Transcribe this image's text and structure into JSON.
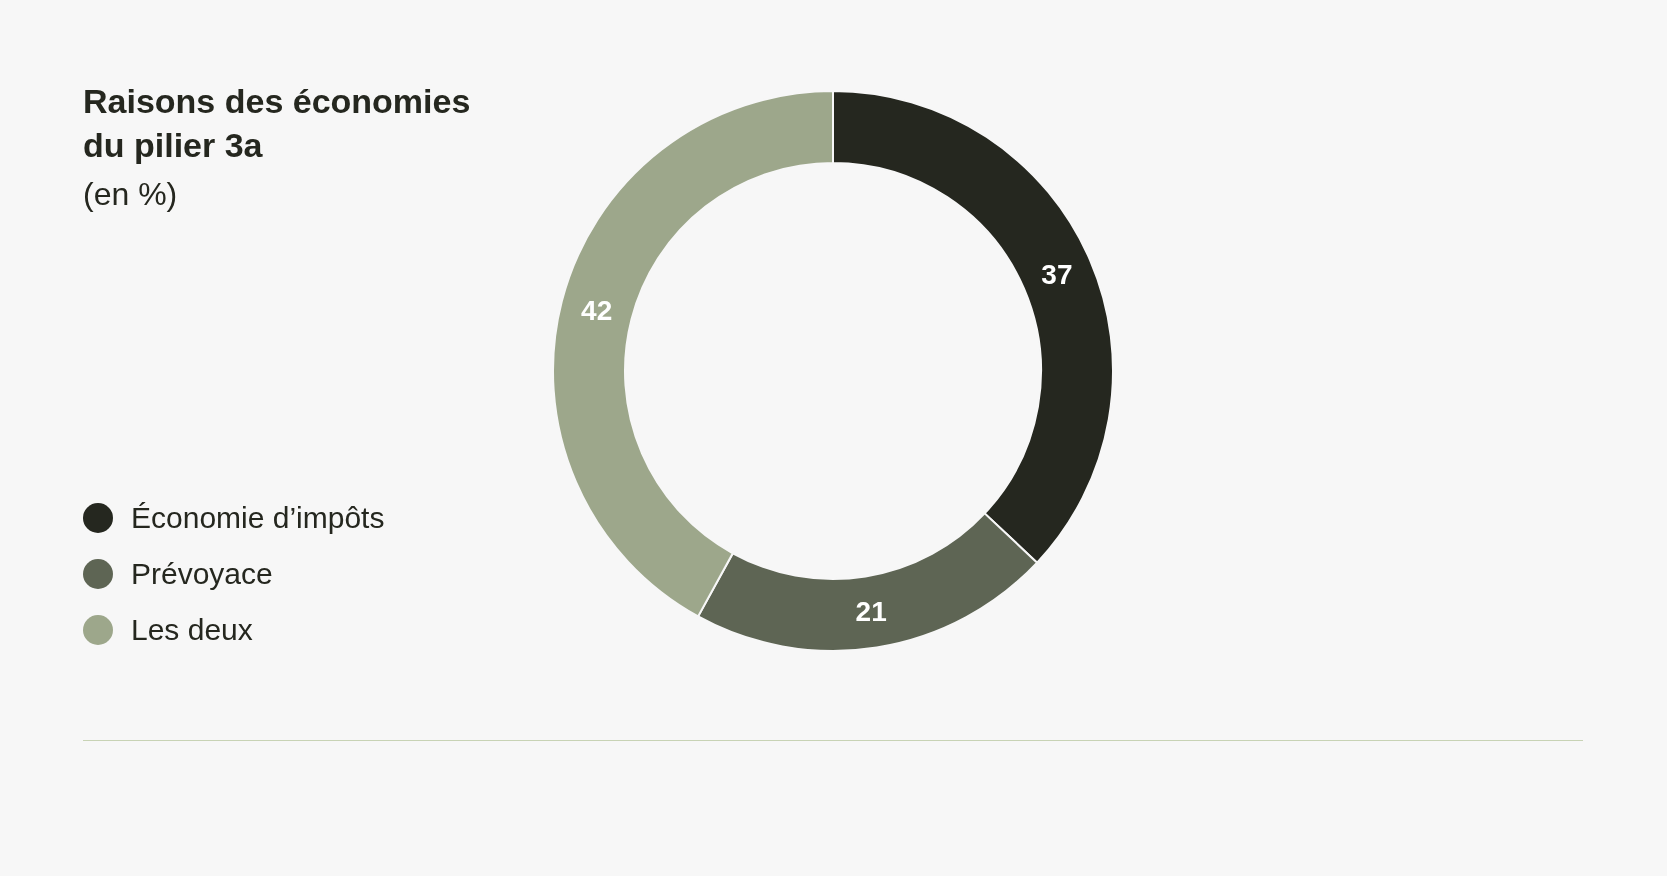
{
  "chart_data": {
    "type": "donut",
    "title": "Raisons des économies du pilier 3a",
    "subtitle": "(en %)",
    "categories": [
      "Économie d’impôts",
      "Prévoyace",
      "Les deux"
    ],
    "values": [
      37,
      21,
      42
    ],
    "colors": [
      "#25271f",
      "#5e6554",
      "#9da78b"
    ],
    "data_labels": true,
    "legend": "left"
  }
}
